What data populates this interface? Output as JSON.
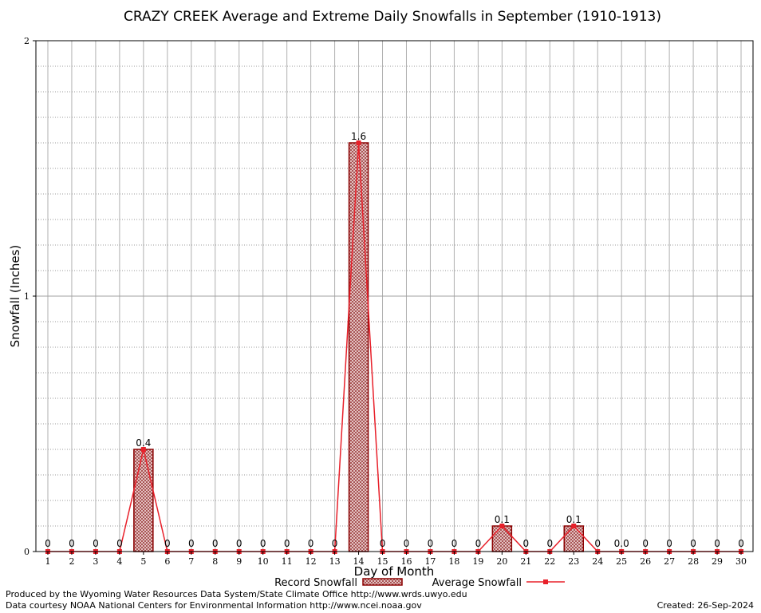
{
  "chart_data": {
    "type": "bar",
    "title": "CRAZY CREEK Average and Extreme Daily Snowfalls in September (1910-1913)",
    "xlabel": "Day of Month",
    "ylabel": "Snowfall (Inches)",
    "ylim": [
      0,
      2
    ],
    "yticks": [
      "0",
      "1",
      "2"
    ],
    "grid": true,
    "legend_position": "bottom",
    "categories": [
      "1",
      "2",
      "3",
      "4",
      "5",
      "6",
      "7",
      "8",
      "9",
      "10",
      "11",
      "12",
      "13",
      "14",
      "15",
      "16",
      "17",
      "18",
      "19",
      "20",
      "21",
      "22",
      "23",
      "24",
      "25",
      "26",
      "27",
      "28",
      "29",
      "30"
    ],
    "series": [
      {
        "name": "Record Snowfall",
        "kind": "bar",
        "values": [
          0,
          0,
          0,
          0,
          0.4,
          0,
          0,
          0,
          0,
          0,
          0,
          0,
          0,
          1.6,
          0,
          0,
          0,
          0,
          0,
          0.1,
          0,
          0,
          0.1,
          0,
          0,
          0,
          0,
          0,
          0,
          0
        ]
      },
      {
        "name": "Average Snowfall",
        "kind": "line",
        "values": [
          0,
          0,
          0,
          0,
          0.4,
          0,
          0,
          0,
          0,
          0,
          0,
          0,
          0,
          1.6,
          0,
          0,
          0,
          0,
          0,
          0.1,
          0,
          0,
          0.1,
          0,
          0,
          0,
          0,
          0,
          0,
          0
        ]
      }
    ],
    "data_labels": [
      "0",
      "0",
      "0",
      "0",
      "0.4",
      "0",
      "0",
      "0",
      "0",
      "0",
      "0",
      "0",
      "0",
      "1.6",
      "0",
      "0",
      "0",
      "0",
      "0",
      "0.1",
      "0",
      "0",
      "0.1",
      "0",
      "0.0",
      "0",
      "0",
      "0",
      "0",
      "0"
    ],
    "colors": {
      "bar_edge": "#8b0000",
      "bar_fill": "#d9a0a0",
      "line": "#e8202a",
      "grid": "#b0b0b0"
    }
  },
  "footer": {
    "line1": "Produced by the Wyoming Water Resources Data System/State Climate Office http://www.wrds.uwyo.edu",
    "line2": "Data courtesy NOAA National Centers for Environmental Information http://www.ncei.noaa.gov",
    "created": "Created:  26-Sep-2024"
  }
}
